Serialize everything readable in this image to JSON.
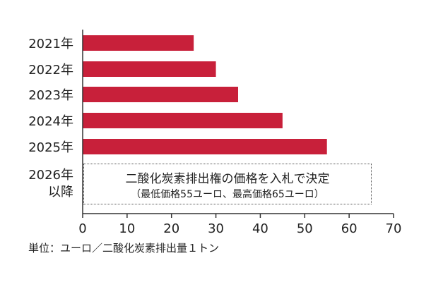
{
  "chart_data": {
    "type": "bar",
    "orientation": "horizontal",
    "categories": [
      "2021年",
      "2022年",
      "2023年",
      "2024年",
      "2025年"
    ],
    "values": [
      25,
      30,
      35,
      45,
      55
    ],
    "extra_category": [
      "2026年",
      "以降"
    ],
    "xlim": [
      0,
      70
    ],
    "xticks": [
      "0",
      "10",
      "20",
      "30",
      "40",
      "50",
      "60",
      "70"
    ],
    "bar_color": "#c8203a",
    "grid": false
  },
  "note": {
    "main": "二酸化炭素排出権の価格を入札で決定",
    "sub": "（最低価格55ユーロ、最高価格65ユーロ）"
  },
  "unit_label": "単位：ユーロ／二酸化炭素排出量１トン"
}
